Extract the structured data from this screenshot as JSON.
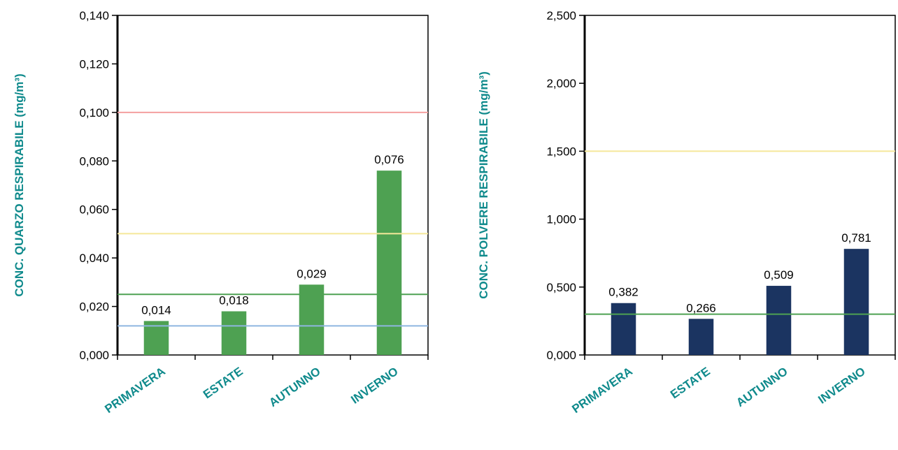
{
  "chart_data": [
    {
      "type": "bar",
      "ylabel": "CONC. QUARZO RESPIRABILE (mg/m³)",
      "categories": [
        "PRIMAVERA",
        "ESTATE",
        "AUTUNNO",
        "INVERNO"
      ],
      "values": [
        0.014,
        0.018,
        0.029,
        0.076
      ],
      "data_labels": [
        "0,014",
        "0,018",
        "0,029",
        "0,076"
      ],
      "ylim": [
        0,
        0.14
      ],
      "yticks": [
        0,
        0.02,
        0.04,
        0.06,
        0.08,
        0.1,
        0.12,
        0.14
      ],
      "ytick_labels": [
        "0,000",
        "0,020",
        "0,040",
        "0,060",
        "0,080",
        "0,100",
        "0,120",
        "0,140"
      ],
      "bar_color": "#4ea152",
      "label_color": "#0f8a8c",
      "reference_lines": [
        {
          "value": 0.1,
          "color": "#f4a0a0"
        },
        {
          "value": 0.05,
          "color": "#f5e89a"
        },
        {
          "value": 0.025,
          "color": "#4ea152"
        },
        {
          "value": 0.012,
          "color": "#8fb6e0"
        }
      ],
      "grid": false
    },
    {
      "type": "bar",
      "ylabel": "CONC. POLVERE RESPIRABILE (mg/m³)",
      "categories": [
        "PRIMAVERA",
        "ESTATE",
        "AUTUNNO",
        "INVERNO"
      ],
      "values": [
        0.382,
        0.266,
        0.509,
        0.781
      ],
      "data_labels": [
        "0,382",
        "0,266",
        "0,509",
        "0,781"
      ],
      "ylim": [
        0,
        2.5
      ],
      "yticks": [
        0,
        0.5,
        1,
        1.5,
        2,
        2.5
      ],
      "ytick_labels": [
        "0,000",
        "0,500",
        "1,000",
        "1,500",
        "2,000",
        "2,500"
      ],
      "bar_color": "#1b3461",
      "label_color": "#0f8a8c",
      "reference_lines": [
        {
          "value": 1.5,
          "color": "#f5e89a"
        },
        {
          "value": 0.3,
          "color": "#4ea152"
        }
      ],
      "grid": false
    }
  ]
}
